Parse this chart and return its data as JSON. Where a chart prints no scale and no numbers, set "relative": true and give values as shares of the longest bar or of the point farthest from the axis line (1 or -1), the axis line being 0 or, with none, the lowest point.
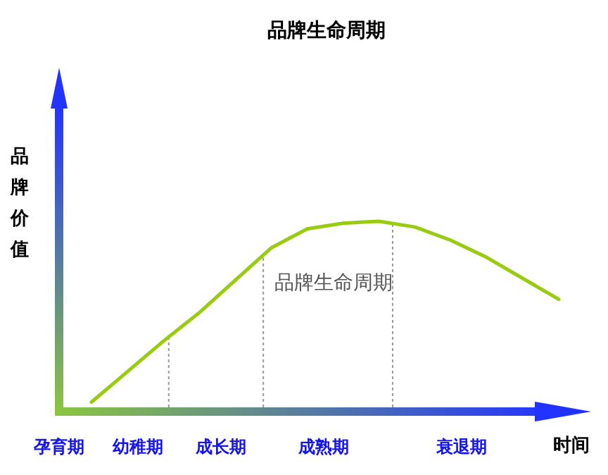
{
  "chart_data": {
    "type": "line",
    "title": "品牌生命周期",
    "xlabel": "时间",
    "ylabel": "品牌价值",
    "relative": true,
    "categories": [
      null,
      null,
      null,
      null,
      null,
      null,
      null,
      null,
      null,
      null,
      null,
      null,
      null,
      null
    ],
    "series": [
      {
        "color": "#99cc11",
        "values": [
          0.05,
          0.21,
          0.37,
          0.52,
          0.69,
          0.86,
          0.96,
          0.99,
          1,
          0.97,
          0.9,
          0.81,
          0.7,
          0.59
        ]
      }
    ],
    "annotations": [
      "品牌生命周期",
      "孕育期",
      "幼稚期",
      "成长期",
      "成熟期",
      "衰退期"
    ],
    "marker": "none",
    "line_style": "solid"
  }
}
